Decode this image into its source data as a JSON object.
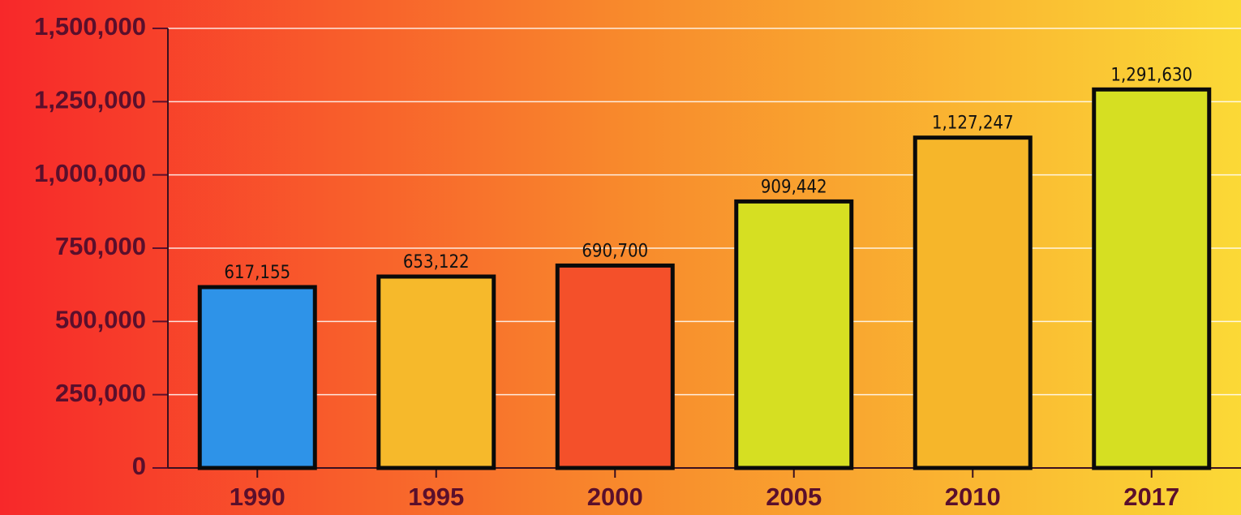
{
  "chart_data": {
    "type": "bar",
    "categories": [
      "1990",
      "1995",
      "2000",
      "2005",
      "2010",
      "2017"
    ],
    "values": [
      617155,
      653122,
      690700,
      909442,
      1127247,
      1291630
    ],
    "value_labels": [
      "617,155",
      "653,122",
      "690,700",
      "909,442",
      "1,127,247",
      "1,291,630"
    ],
    "colors": [
      "#2e93e8",
      "#f6b92b",
      "#f4502a",
      "#d6df22",
      "#f6b62a",
      "#d6df22"
    ],
    "ylim": [
      0,
      1500000
    ],
    "yticks": [
      0,
      {
        "value": 250000,
        "label": "250,000"
      },
      {
        "value": 500000,
        "label": "500,000"
      },
      {
        "value": 750000,
        "label": "750,000"
      },
      {
        "value": 1000000,
        "label": "1,000,000"
      },
      {
        "value": 1250000,
        "label": "1,250,000"
      },
      {
        "value": 1500000,
        "label": "1,500,000"
      }
    ],
    "grid": true
  }
}
